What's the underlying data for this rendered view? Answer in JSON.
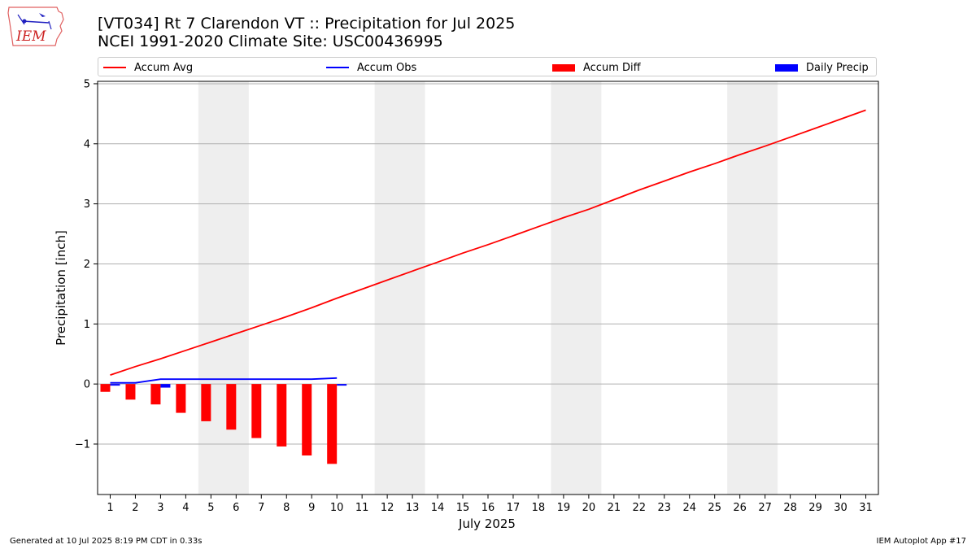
{
  "title_line1": "[VT034] Rt 7 Clarendon  VT :: Precipitation for Jul 2025",
  "title_line2": "NCEI 1991-2020 Climate Site: USC00436995",
  "logo_text": "IEM",
  "footer_left": "Generated at 10 Jul 2025 8:19 PM CDT in 0.33s",
  "footer_right": "IEM Autoplot App #17",
  "colors": {
    "avg": "#ff0000",
    "obs": "#0000ff",
    "diff": "#ff0000",
    "daily": "#0000ff",
    "weekend": "#eeeeee",
    "grid": "#b0b0b0"
  },
  "legend": [
    {
      "label": "Accum Avg",
      "kind": "line",
      "color": "#ff0000"
    },
    {
      "label": "Accum Obs",
      "kind": "line",
      "color": "#0000ff"
    },
    {
      "label": "Accum Diff",
      "kind": "patch",
      "color": "#ff0000"
    },
    {
      "label": "Daily Precip",
      "kind": "patch",
      "color": "#0000ff"
    }
  ],
  "chart_data": {
    "type": "line",
    "xlabel": "July 2025",
    "ylabel": "Precipitation [inch]",
    "xlim": [
      0.5,
      31.5
    ],
    "ylim": [
      -1.84,
      5.04
    ],
    "x_ticks": [
      1,
      2,
      3,
      4,
      5,
      6,
      7,
      8,
      9,
      10,
      11,
      12,
      13,
      14,
      15,
      16,
      17,
      18,
      19,
      20,
      21,
      22,
      23,
      24,
      25,
      26,
      27,
      28,
      29,
      30,
      31
    ],
    "y_ticks": [
      -1,
      0,
      1,
      2,
      3,
      4,
      5
    ],
    "y_tick_labels": [
      "−1",
      "0",
      "1",
      "2",
      "3",
      "4",
      "5"
    ],
    "grid": "horizontal",
    "weekend_shading": [
      [
        4.5,
        6.5
      ],
      [
        11.5,
        13.5
      ],
      [
        18.5,
        20.5
      ],
      [
        25.5,
        27.5
      ]
    ],
    "series": [
      {
        "name": "Accum Avg",
        "kind": "line",
        "x": [
          1,
          2,
          3,
          4,
          5,
          6,
          7,
          8,
          9,
          10,
          11,
          12,
          13,
          14,
          15,
          16,
          17,
          18,
          19,
          20,
          21,
          22,
          23,
          24,
          25,
          26,
          27,
          28,
          29,
          30,
          31
        ],
        "values": [
          0.15,
          0.29,
          0.42,
          0.56,
          0.7,
          0.84,
          0.98,
          1.12,
          1.27,
          1.43,
          1.58,
          1.73,
          1.88,
          2.03,
          2.18,
          2.32,
          2.47,
          2.62,
          2.77,
          2.91,
          3.07,
          3.23,
          3.38,
          3.53,
          3.67,
          3.82,
          3.96,
          4.11,
          4.26,
          4.41,
          4.56
        ]
      },
      {
        "name": "Accum Obs",
        "kind": "line",
        "x": [
          1,
          2,
          3,
          4,
          5,
          6,
          7,
          8,
          9,
          10
        ],
        "values": [
          0.02,
          0.02,
          0.08,
          0.08,
          0.08,
          0.08,
          0.08,
          0.08,
          0.08,
          0.1
        ]
      },
      {
        "name": "Accum Diff",
        "kind": "bar",
        "x": [
          1,
          2,
          3,
          4,
          5,
          6,
          7,
          8,
          9,
          10
        ],
        "values": [
          -0.13,
          -0.26,
          -0.34,
          -0.48,
          -0.62,
          -0.76,
          -0.9,
          -1.04,
          -1.19,
          -1.33
        ]
      },
      {
        "name": "Daily Precip",
        "kind": "bar",
        "x": [
          1,
          2,
          3,
          4,
          5,
          6,
          7,
          8,
          9,
          10
        ],
        "values": [
          0.02,
          0.0,
          0.06,
          0.0,
          0.0,
          0.0,
          0.0,
          0.0,
          0.0,
          0.02
        ]
      }
    ]
  }
}
